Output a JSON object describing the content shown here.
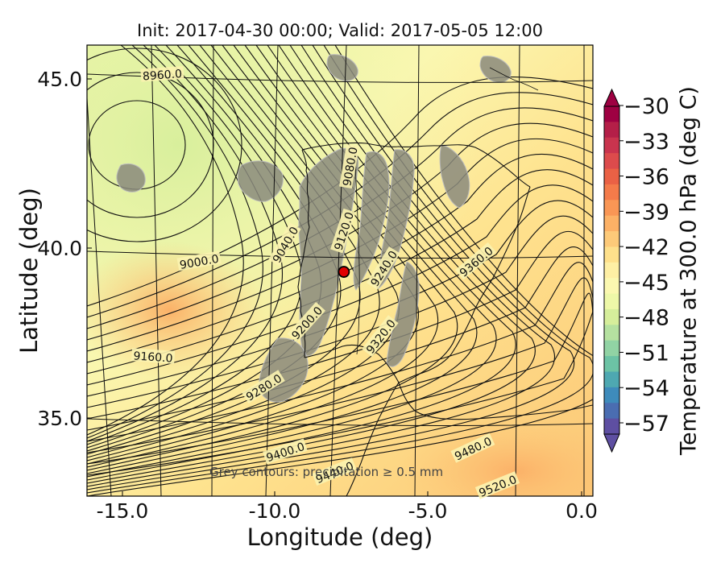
{
  "title": "Init: 2017-04-30 00:00; Valid: 2017-05-05 12:00",
  "axes": {
    "xlabel": "Longitude (deg)",
    "ylabel": "Latitude (deg)",
    "xticks": [
      "-15.0",
      "-10.0",
      "-5.0",
      "0.0"
    ],
    "yticks": [
      "45.0",
      "40.0",
      "35.0"
    ]
  },
  "colorbar": {
    "label": "Temperature at 300.0 hPa (deg C)",
    "ticks": [
      "−30",
      "−33",
      "−36",
      "−39",
      "−42",
      "−45",
      "−48",
      "−51",
      "−54",
      "−57"
    ],
    "colors": [
      "#9e0142",
      "#b41f48",
      "#c9344e",
      "#dc4b4c",
      "#ea6145",
      "#f47b4a",
      "#f99655",
      "#fcb166",
      "#fdca79",
      "#fee08b",
      "#feefa4",
      "#fbf8b0",
      "#eef8a8",
      "#d6ee9b",
      "#b5e1a0",
      "#91d3a4",
      "#6cc3a5",
      "#4ea8b1",
      "#3e8bbb",
      "#4a6db1",
      "#5e4fa2"
    ]
  },
  "annotation": "Grey contours: precipitation ≥ 0.5 mm",
  "point_marker": {
    "lon": -7.7,
    "lat": 39.3,
    "color": "#e00000"
  },
  "contour_labels": [
    {
      "text": "8960.0",
      "lon": -13.6,
      "lat": 45.1,
      "rot": -4
    },
    {
      "text": "9000.0",
      "lon": -12.4,
      "lat": 39.6,
      "rot": -10
    },
    {
      "text": "9040.0",
      "lon": -9.6,
      "lat": 40.1,
      "rot": -60
    },
    {
      "text": "9080.0",
      "lon": -7.5,
      "lat": 42.4,
      "rot": -80
    },
    {
      "text": "9120.0",
      "lon": -7.7,
      "lat": 40.5,
      "rot": -72
    },
    {
      "text": "9160.0",
      "lon": -13.9,
      "lat": 36.8,
      "rot": 4
    },
    {
      "text": "9200.0",
      "lon": -8.9,
      "lat": 37.8,
      "rot": -48
    },
    {
      "text": "9240.0",
      "lon": -6.4,
      "lat": 39.4,
      "rot": -58
    },
    {
      "text": "9280.0",
      "lon": -10.3,
      "lat": 35.9,
      "rot": -32
    },
    {
      "text": "9320.0",
      "lon": -6.5,
      "lat": 37.4,
      "rot": -52
    },
    {
      "text": "9360.0",
      "lon": -3.4,
      "lat": 39.6,
      "rot": -40
    },
    {
      "text": "9400.0",
      "lon": -9.6,
      "lat": 34.0,
      "rot": -18
    },
    {
      "text": "9440.0",
      "lon": -8.0,
      "lat": 33.4,
      "rot": -22
    },
    {
      "text": "9480.0",
      "lon": -3.5,
      "lat": 34.1,
      "rot": -25
    },
    {
      "text": "9520.0",
      "lon": -2.7,
      "lat": 33.0,
      "rot": -22
    }
  ]
}
